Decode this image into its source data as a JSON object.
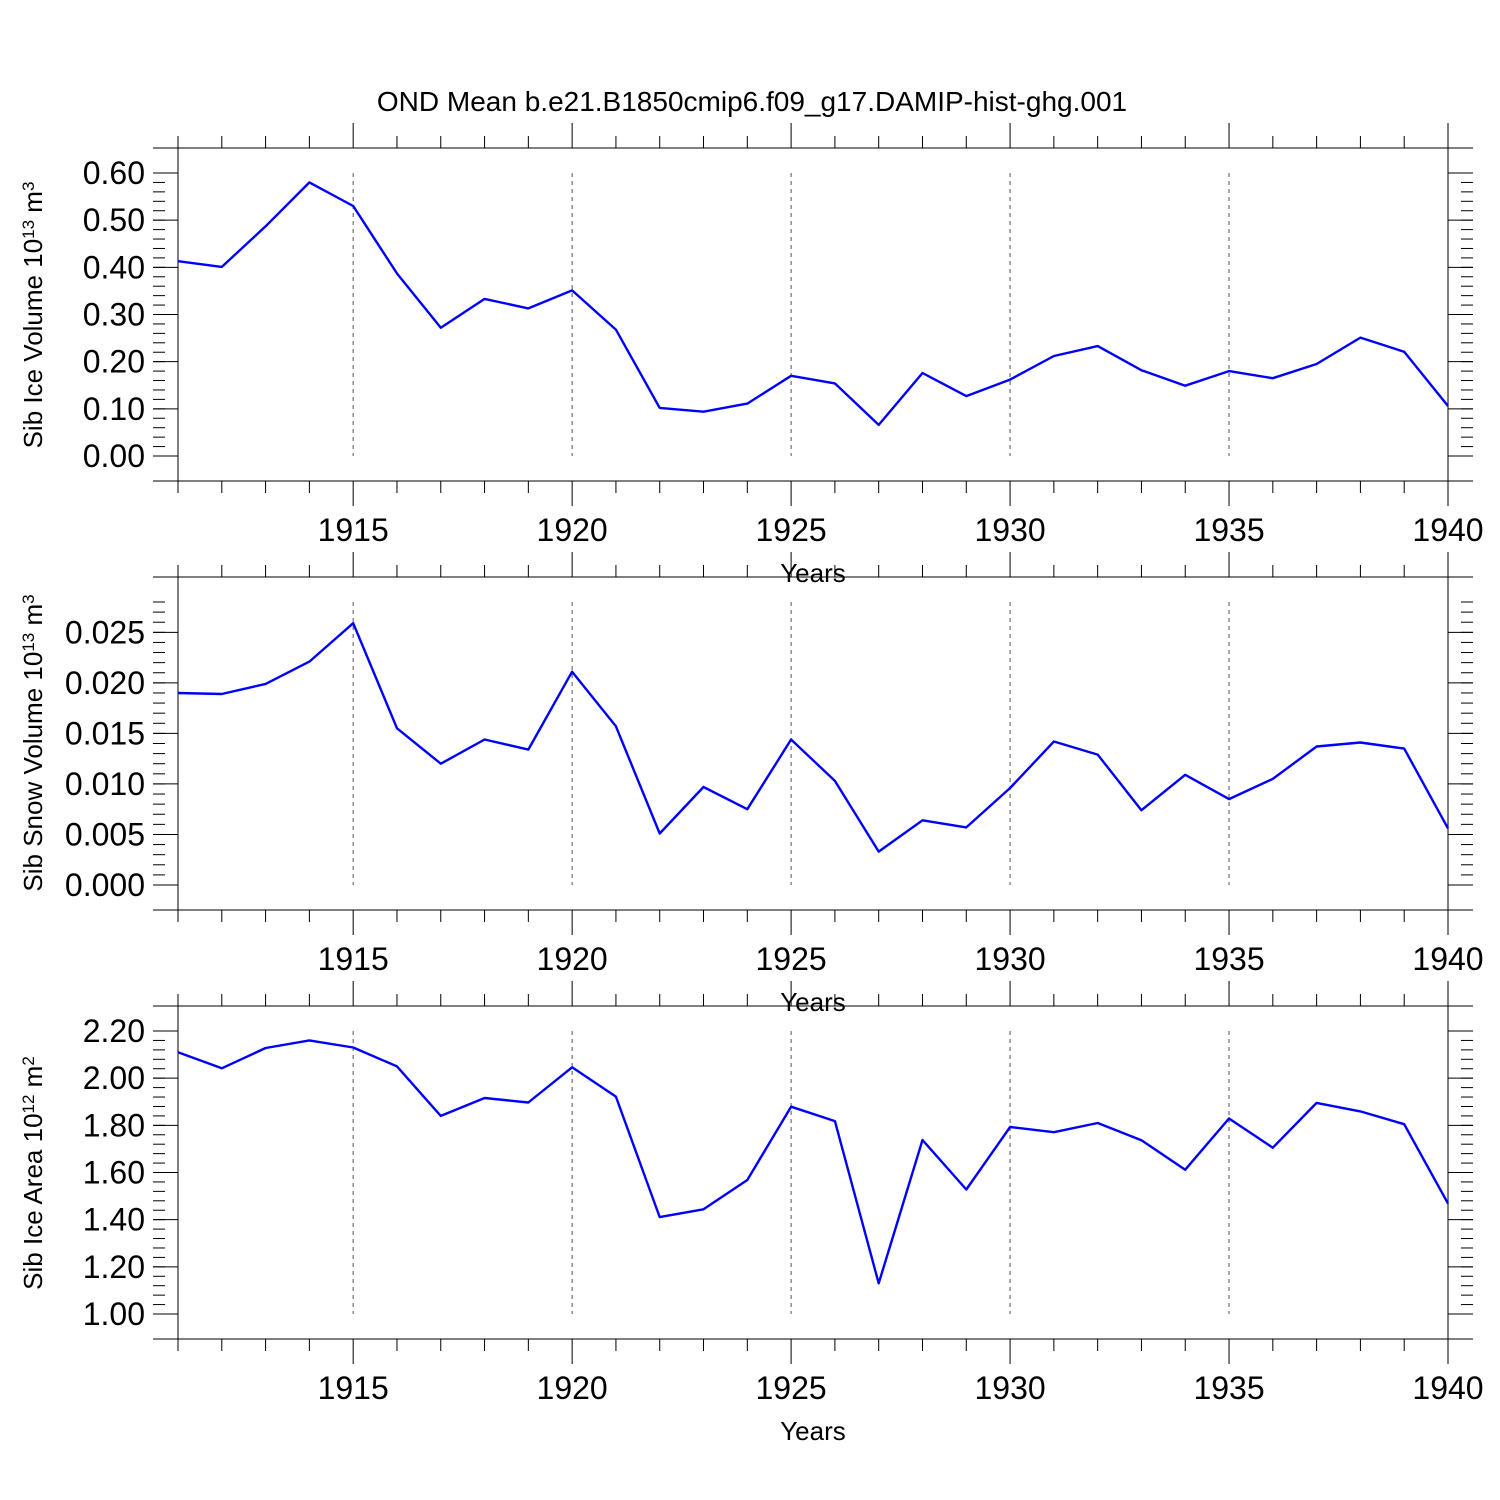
{
  "title": "OND Mean b.e21.B1850cmip6.f09_g17.DAMIP-hist-ghg.001",
  "series_color": "#0000ff",
  "chart_data": [
    {
      "type": "line",
      "ylabel": {
        "text": "Sib Ice Volume 10",
        "exp": "13",
        "unit": " m",
        "unit_exp": "3"
      },
      "xlabel": "Years",
      "xlim": [
        1911,
        1940
      ],
      "ylim": [
        0.0,
        0.6
      ],
      "yticks": [
        0.0,
        0.1,
        0.2,
        0.3,
        0.4,
        0.5,
        0.6
      ],
      "ytick_labels": [
        "0.00",
        "0.10",
        "0.20",
        "0.30",
        "0.40",
        "0.50",
        "0.60"
      ],
      "yminor_step": 0.02,
      "xticks": [
        1915,
        1920,
        1925,
        1930,
        1935,
        1940
      ],
      "xtick_labels": [
        "1915",
        "1920",
        "1925",
        "1930",
        "1935",
        "1940"
      ],
      "grid": "vertical dashed at major x ticks",
      "x": [
        1911,
        1912,
        1913,
        1914,
        1915,
        1916,
        1917,
        1918,
        1919,
        1920,
        1921,
        1922,
        1923,
        1924,
        1925,
        1926,
        1927,
        1928,
        1929,
        1930,
        1931,
        1932,
        1933,
        1934,
        1935,
        1936,
        1937,
        1938,
        1939,
        1940
      ],
      "series": [
        {
          "values": [
            0.413,
            0.401,
            0.487,
            0.58,
            0.53,
            0.387,
            0.272,
            0.333,
            0.313,
            0.351,
            0.268,
            0.102,
            0.094,
            0.111,
            0.17,
            0.154,
            0.066,
            0.176,
            0.127,
            0.162,
            0.212,
            0.233,
            0.182,
            0.149,
            0.18,
            0.165,
            0.195,
            0.251,
            0.221,
            0.106
          ]
        }
      ]
    },
    {
      "type": "line",
      "ylabel": {
        "text": "Sib Snow Volume 10",
        "exp": "13",
        "unit": " m",
        "unit_exp": "3"
      },
      "xlabel": "Years",
      "xlim": [
        1911,
        1940
      ],
      "ylim": [
        0.0,
        0.028
      ],
      "yticks": [
        0.0,
        0.005,
        0.01,
        0.015,
        0.02,
        0.025
      ],
      "ytick_labels": [
        "0.000",
        "0.005",
        "0.010",
        "0.015",
        "0.020",
        "0.025"
      ],
      "yminor_step": 0.001,
      "xticks": [
        1915,
        1920,
        1925,
        1930,
        1935,
        1940
      ],
      "xtick_labels": [
        "1915",
        "1920",
        "1925",
        "1930",
        "1935",
        "1940"
      ],
      "grid": "vertical dashed at major x ticks",
      "x": [
        1911,
        1912,
        1913,
        1914,
        1915,
        1916,
        1917,
        1918,
        1919,
        1920,
        1921,
        1922,
        1923,
        1924,
        1925,
        1926,
        1927,
        1928,
        1929,
        1930,
        1931,
        1932,
        1933,
        1934,
        1935,
        1936,
        1937,
        1938,
        1939,
        1940
      ],
      "series": [
        {
          "values": [
            0.019,
            0.0189,
            0.0199,
            0.0221,
            0.0259,
            0.0155,
            0.012,
            0.0144,
            0.0134,
            0.0211,
            0.0157,
            0.0051,
            0.0097,
            0.0075,
            0.0144,
            0.0103,
            0.0033,
            0.0064,
            0.0057,
            0.0096,
            0.0142,
            0.0129,
            0.0074,
            0.0109,
            0.0085,
            0.0105,
            0.0137,
            0.0141,
            0.0135,
            0.0056
          ]
        }
      ]
    },
    {
      "type": "line",
      "ylabel": {
        "text": "Sib Ice Area 10",
        "exp": "12",
        "unit": " m",
        "unit_exp": "2"
      },
      "xlabel": "Years",
      "xlim": [
        1911,
        1940
      ],
      "ylim": [
        1.0,
        2.2
      ],
      "yticks": [
        1.0,
        1.2,
        1.4,
        1.6,
        1.8,
        2.0,
        2.2
      ],
      "ytick_labels": [
        "1.00",
        "1.20",
        "1.40",
        "1.60",
        "1.80",
        "2.00",
        "2.20"
      ],
      "yminor_step": 0.04,
      "xticks": [
        1915,
        1920,
        1925,
        1930,
        1935,
        1940
      ],
      "xtick_labels": [
        "1915",
        "1920",
        "1925",
        "1930",
        "1935",
        "1940"
      ],
      "grid": "vertical dashed at major x ticks",
      "x": [
        1911,
        1912,
        1913,
        1914,
        1915,
        1916,
        1917,
        1918,
        1919,
        1920,
        1921,
        1922,
        1923,
        1924,
        1925,
        1926,
        1927,
        1928,
        1929,
        1930,
        1931,
        1932,
        1933,
        1934,
        1935,
        1936,
        1937,
        1938,
        1939,
        1940
      ],
      "series": [
        {
          "values": [
            2.11,
            2.042,
            2.128,
            2.16,
            2.13,
            2.05,
            1.84,
            1.916,
            1.897,
            2.046,
            1.922,
            1.411,
            1.444,
            1.568,
            1.879,
            1.818,
            1.13,
            1.738,
            1.528,
            1.793,
            1.771,
            1.81,
            1.737,
            1.612,
            1.829,
            1.705,
            1.895,
            1.859,
            1.805,
            1.468
          ]
        }
      ]
    }
  ]
}
